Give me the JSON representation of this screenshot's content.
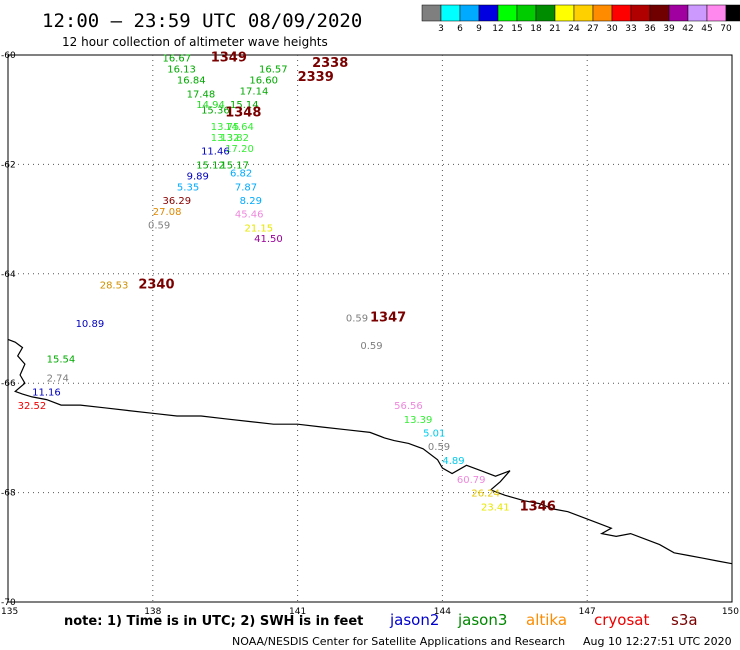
{
  "header": {
    "title": "12:00 — 23:59 UTC 08/09/2020",
    "subtitle": "12 hour collection of altimeter wave heights"
  },
  "legend": {
    "unit": "(ft)",
    "bins": [
      {
        "label": "3",
        "color": "#7f7f7f"
      },
      {
        "label": "6",
        "color": "#00ffff"
      },
      {
        "label": "9",
        "color": "#00aaff"
      },
      {
        "label": "12",
        "color": "#0000e0"
      },
      {
        "label": "15",
        "color": "#00ff00"
      },
      {
        "label": "18",
        "color": "#00cc00"
      },
      {
        "label": "21",
        "color": "#008c00"
      },
      {
        "label": "24",
        "color": "#ffff00"
      },
      {
        "label": "27",
        "color": "#ffd000"
      },
      {
        "label": "30",
        "color": "#ff8c00"
      },
      {
        "label": "33",
        "color": "#ff0000"
      },
      {
        "label": "36",
        "color": "#b00000"
      },
      {
        "label": "39",
        "color": "#700000"
      },
      {
        "label": "42",
        "color": "#a000a0"
      },
      {
        "label": "45",
        "color": "#cc99ff"
      },
      {
        "label": "70",
        "color": "#ff88ee"
      },
      {
        "label": "",
        "color": "#000000"
      }
    ]
  },
  "map": {
    "lon_range": [
      135,
      150
    ],
    "lat_range": [
      -70,
      -60
    ],
    "lon_ticks": [
      "135",
      "138",
      "141",
      "144",
      "147",
      "150"
    ],
    "lat_ticks": [
      "-60",
      "-62",
      "-64",
      "-66",
      "-68",
      "-70"
    ],
    "grid_lon": [
      138,
      141,
      144,
      147
    ],
    "grid_lat": [
      -62,
      -64,
      -66,
      -68
    ]
  },
  "observations": [
    {
      "lon": 139.2,
      "lat": -60.05,
      "text": "1349",
      "color": "#7a0000",
      "type": "time"
    },
    {
      "lon": 138.2,
      "lat": -60.05,
      "text": "16.67",
      "color": "#00aa00",
      "type": "swh"
    },
    {
      "lon": 138.3,
      "lat": -60.25,
      "text": "16.13",
      "color": "#00aa00",
      "type": "swh"
    },
    {
      "lon": 138.5,
      "lat": -60.45,
      "text": "16.84",
      "color": "#00aa00",
      "type": "swh"
    },
    {
      "lon": 138.7,
      "lat": -60.7,
      "text": "17.48",
      "color": "#00aa00",
      "type": "swh"
    },
    {
      "lon": 138.9,
      "lat": -60.9,
      "text": "14.94",
      "color": "#22dd22",
      "type": "swh"
    },
    {
      "lon": 139.0,
      "lat": -61.0,
      "text": "15.36",
      "color": "#00aa00",
      "type": "swh"
    },
    {
      "lon": 139.2,
      "lat": -61.3,
      "text": "13.75",
      "color": "#33ee33",
      "type": "swh"
    },
    {
      "lon": 139.5,
      "lat": -61.3,
      "text": "14.64",
      "color": "#33ee33",
      "type": "swh"
    },
    {
      "lon": 139.2,
      "lat": -61.5,
      "text": "13.32",
      "color": "#33ee33",
      "type": "swh"
    },
    {
      "lon": 139.4,
      "lat": -61.5,
      "text": "13.82",
      "color": "#33ee33",
      "type": "swh"
    },
    {
      "lon": 139.5,
      "lat": -61.7,
      "text": "17.20",
      "color": "#33ee33",
      "type": "swh"
    },
    {
      "lon": 139.0,
      "lat": -61.75,
      "text": "11.46",
      "color": "#0000c0",
      "type": "swh"
    },
    {
      "lon": 138.9,
      "lat": -62.0,
      "text": "15.12",
      "color": "#00aa00",
      "type": "swh"
    },
    {
      "lon": 139.4,
      "lat": -62.0,
      "text": "15.17",
      "color": "#00aa00",
      "type": "swh"
    },
    {
      "lon": 138.7,
      "lat": -62.2,
      "text": "9.89",
      "color": "#0000c0",
      "type": "swh"
    },
    {
      "lon": 138.5,
      "lat": -62.4,
      "text": "5.35",
      "color": "#00aaff",
      "type": "swh"
    },
    {
      "lon": 138.2,
      "lat": -62.65,
      "text": "36.29",
      "color": "#880000",
      "type": "swh"
    },
    {
      "lon": 138.0,
      "lat": -62.85,
      "text": "27.08",
      "color": "#e08800",
      "type": "swh"
    },
    {
      "lon": 137.9,
      "lat": -63.1,
      "text": "0.59",
      "color": "#7f7f7f",
      "type": "swh"
    },
    {
      "lon": 140.2,
      "lat": -60.25,
      "text": "16.57",
      "color": "#00aa00",
      "type": "swh"
    },
    {
      "lon": 141.3,
      "lat": -60.15,
      "text": "2338",
      "color": "#7a0000",
      "type": "time"
    },
    {
      "lon": 141.0,
      "lat": -60.4,
      "text": "2339",
      "color": "#7a0000",
      "type": "time"
    },
    {
      "lon": 140.0,
      "lat": -60.45,
      "text": "16.60",
      "color": "#00aa00",
      "type": "swh"
    },
    {
      "lon": 139.8,
      "lat": -60.65,
      "text": "17.14",
      "color": "#00aa00",
      "type": "swh"
    },
    {
      "lon": 139.6,
      "lat": -60.9,
      "text": "15.14",
      "color": "#00aa00",
      "type": "swh"
    },
    {
      "lon": 139.5,
      "lat": -61.05,
      "text": "1348",
      "color": "#7a0000",
      "type": "time"
    },
    {
      "lon": 139.6,
      "lat": -62.15,
      "text": "6.82",
      "color": "#00aaff",
      "type": "swh"
    },
    {
      "lon": 139.7,
      "lat": -62.4,
      "text": "7.87",
      "color": "#00aaff",
      "type": "swh"
    },
    {
      "lon": 139.8,
      "lat": -62.65,
      "text": "8.29",
      "color": "#00aaff",
      "type": "swh"
    },
    {
      "lon": 139.7,
      "lat": -62.9,
      "text": "45.46",
      "color": "#ee88dd",
      "type": "swh"
    },
    {
      "lon": 139.9,
      "lat": -63.15,
      "text": "21.15",
      "color": "#e8e800",
      "type": "swh"
    },
    {
      "lon": 140.1,
      "lat": -63.35,
      "text": "41.50",
      "color": "#990099",
      "type": "swh"
    },
    {
      "lon": 136.9,
      "lat": -64.2,
      "text": "28.53",
      "color": "#d09000",
      "type": "swh"
    },
    {
      "lon": 137.7,
      "lat": -64.2,
      "text": "2340",
      "color": "#7a0000",
      "type": "time"
    },
    {
      "lon": 136.4,
      "lat": -64.9,
      "text": "10.89",
      "color": "#0000c0",
      "type": "swh"
    },
    {
      "lon": 135.8,
      "lat": -65.55,
      "text": "15.54",
      "color": "#00aa00",
      "type": "swh"
    },
    {
      "lon": 135.8,
      "lat": -65.9,
      "text": "2.74",
      "color": "#7f7f7f",
      "type": "swh"
    },
    {
      "lon": 135.5,
      "lat": -66.15,
      "text": "11.16",
      "color": "#0000c0",
      "type": "swh"
    },
    {
      "lon": 135.2,
      "lat": -66.4,
      "text": "32.52",
      "color": "#ee0000",
      "type": "swh"
    },
    {
      "lon": 142.0,
      "lat": -64.8,
      "text": "0.59",
      "color": "#7f7f7f",
      "type": "swh"
    },
    {
      "lon": 142.5,
      "lat": -64.8,
      "text": "1347",
      "color": "#7a0000",
      "type": "time"
    },
    {
      "lon": 142.3,
      "lat": -65.3,
      "text": "0.59",
      "color": "#7f7f7f",
      "type": "swh"
    },
    {
      "lon": 143.0,
      "lat": -66.4,
      "text": "56.56",
      "color": "#ee88dd",
      "type": "swh"
    },
    {
      "lon": 143.2,
      "lat": -66.65,
      "text": "13.39",
      "color": "#33ee33",
      "type": "swh"
    },
    {
      "lon": 143.6,
      "lat": -66.9,
      "text": "5.01",
      "color": "#00ccee",
      "type": "swh"
    },
    {
      "lon": 143.7,
      "lat": -67.15,
      "text": "0.59",
      "color": "#7f7f7f",
      "type": "swh"
    },
    {
      "lon": 144.0,
      "lat": -67.4,
      "text": "4.89",
      "color": "#00ccee",
      "type": "swh"
    },
    {
      "lon": 144.3,
      "lat": -67.75,
      "text": "60.79",
      "color": "#ee88dd",
      "type": "swh"
    },
    {
      "lon": 144.6,
      "lat": -68.0,
      "text": "26.24",
      "color": "#e8c800",
      "type": "swh"
    },
    {
      "lon": 144.8,
      "lat": -68.25,
      "text": "23.41",
      "color": "#e8e800",
      "type": "swh"
    },
    {
      "lon": 145.6,
      "lat": -68.25,
      "text": "1346",
      "color": "#7a0000",
      "type": "time"
    }
  ],
  "coastline": [
    [
      135.0,
      -65.2
    ],
    [
      135.15,
      -65.25
    ],
    [
      135.3,
      -65.35
    ],
    [
      135.2,
      -65.5
    ],
    [
      135.35,
      -65.65
    ],
    [
      135.25,
      -65.85
    ],
    [
      135.35,
      -66.0
    ],
    [
      135.15,
      -66.15
    ],
    [
      135.3,
      -66.2
    ],
    [
      135.5,
      -66.25
    ],
    [
      135.8,
      -66.3
    ],
    [
      136.1,
      -66.4
    ],
    [
      136.5,
      -66.4
    ],
    [
      137.0,
      -66.45
    ],
    [
      137.5,
      -66.5
    ],
    [
      138.0,
      -66.55
    ],
    [
      138.5,
      -66.6
    ],
    [
      139.0,
      -66.6
    ],
    [
      139.5,
      -66.65
    ],
    [
      140.0,
      -66.7
    ],
    [
      140.5,
      -66.75
    ],
    [
      141.0,
      -66.75
    ],
    [
      141.5,
      -66.8
    ],
    [
      142.0,
      -66.85
    ],
    [
      142.5,
      -66.9
    ],
    [
      142.8,
      -67.0
    ],
    [
      143.0,
      -67.05
    ],
    [
      143.3,
      -67.1
    ],
    [
      143.6,
      -67.2
    ],
    [
      143.9,
      -67.4
    ],
    [
      144.0,
      -67.55
    ],
    [
      144.2,
      -67.65
    ],
    [
      144.5,
      -67.5
    ],
    [
      144.8,
      -67.6
    ],
    [
      145.1,
      -67.7
    ],
    [
      145.4,
      -67.6
    ],
    [
      145.2,
      -67.8
    ],
    [
      145.0,
      -67.95
    ],
    [
      145.3,
      -68.05
    ],
    [
      145.7,
      -68.15
    ],
    [
      146.0,
      -68.2
    ],
    [
      146.3,
      -68.3
    ],
    [
      146.6,
      -68.35
    ],
    [
      146.9,
      -68.45
    ],
    [
      147.2,
      -68.55
    ],
    [
      147.5,
      -68.65
    ],
    [
      147.3,
      -68.75
    ],
    [
      147.6,
      -68.8
    ],
    [
      147.9,
      -68.75
    ],
    [
      148.2,
      -68.85
    ],
    [
      148.5,
      -68.95
    ],
    [
      148.8,
      -69.1
    ],
    [
      149.1,
      -69.15
    ],
    [
      149.4,
      -69.2
    ],
    [
      149.7,
      -69.25
    ],
    [
      150.0,
      -69.3
    ]
  ],
  "footer": {
    "note": "note: 1) Time is in UTC; 2) SWH is in feet",
    "credit": "NOAA/NESDIS Center for Satellite Applications and Research",
    "generated": "Aug 10 12:27:51 UTC 2020",
    "satellites": [
      {
        "name": "jason2",
        "color": "#0000cc"
      },
      {
        "name": "jason3",
        "color": "#008800"
      },
      {
        "name": "altika",
        "color": "#ff8c00"
      },
      {
        "name": "cryosat",
        "color": "#ee0000"
      },
      {
        "name": "s3a",
        "color": "#7a0000"
      }
    ]
  }
}
